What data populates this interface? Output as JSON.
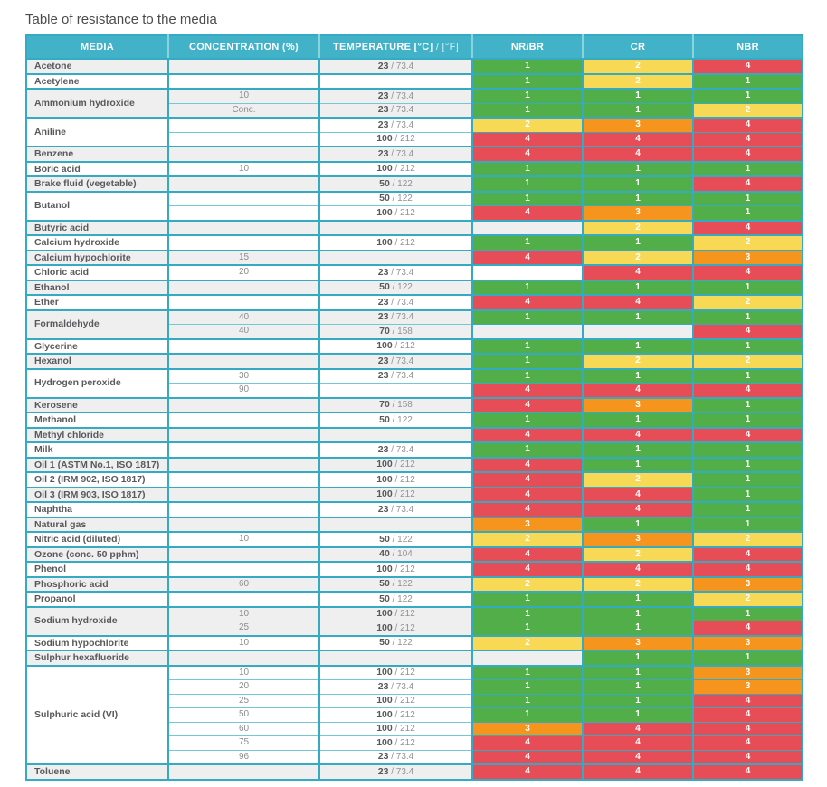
{
  "title": "Table of resistance to the media",
  "colors": {
    "header_bg": "#42b2c8",
    "border": "#35abc3",
    "row_gray": "#efeff0",
    "row_white": "#ffffff",
    "rating_1": "#52ae49",
    "rating_2": "#f8d955",
    "rating_3": "#f6951e",
    "rating_4": "#e64d57"
  },
  "table": {
    "columns": [
      "MEDIA",
      "CONCENTRATION (%)",
      "TEMPERATURE [°C] / [°F]",
      "NR/BR",
      "CR",
      "NBR"
    ],
    "temp_header": {
      "bold": "TEMPERATURE [°C]",
      "light": " / [°F]"
    },
    "rating_legend": {
      "1": "green",
      "2": "yellow",
      "3": "orange",
      "4": "red"
    },
    "groups": [
      {
        "media": "Acetone",
        "rows": [
          {
            "concentration": "",
            "temp_c": "23",
            "temp_f": "73.4",
            "ratings": [
              1,
              2,
              4
            ]
          }
        ]
      },
      {
        "media": "Acetylene",
        "rows": [
          {
            "concentration": "",
            "temp_c": "",
            "temp_f": "",
            "ratings": [
              1,
              2,
              1
            ]
          }
        ]
      },
      {
        "media": "Ammonium hydroxide",
        "rows": [
          {
            "concentration": "10",
            "temp_c": "23",
            "temp_f": "73.4",
            "ratings": [
              1,
              1,
              1
            ]
          },
          {
            "concentration": "Conc.",
            "temp_c": "23",
            "temp_f": "73.4",
            "ratings": [
              1,
              1,
              2
            ]
          }
        ]
      },
      {
        "media": "Aniline",
        "rows": [
          {
            "concentration": "",
            "temp_c": "23",
            "temp_f": "73.4",
            "ratings": [
              2,
              3,
              4
            ]
          },
          {
            "concentration": "",
            "temp_c": "100",
            "temp_f": "212",
            "ratings": [
              4,
              4,
              4
            ]
          }
        ]
      },
      {
        "media": "Benzene",
        "rows": [
          {
            "concentration": "",
            "temp_c": "23",
            "temp_f": "73.4",
            "ratings": [
              4,
              4,
              4
            ]
          }
        ]
      },
      {
        "media": "Boric acid",
        "rows": [
          {
            "concentration": "10",
            "temp_c": "100",
            "temp_f": "212",
            "ratings": [
              1,
              1,
              1
            ]
          }
        ]
      },
      {
        "media": "Brake fluid (vegetable)",
        "rows": [
          {
            "concentration": "",
            "temp_c": "50",
            "temp_f": "122",
            "ratings": [
              1,
              1,
              4
            ]
          }
        ]
      },
      {
        "media": "Butanol",
        "rows": [
          {
            "concentration": "",
            "temp_c": "50",
            "temp_f": "122",
            "ratings": [
              1,
              1,
              1
            ]
          },
          {
            "concentration": "",
            "temp_c": "100",
            "temp_f": "212",
            "ratings": [
              4,
              3,
              1
            ]
          }
        ]
      },
      {
        "media": "Butyric acid",
        "rows": [
          {
            "concentration": "",
            "temp_c": "",
            "temp_f": "",
            "ratings": [
              null,
              2,
              4
            ]
          }
        ]
      },
      {
        "media": "Calcium hydroxide",
        "rows": [
          {
            "concentration": "",
            "temp_c": "100",
            "temp_f": "212",
            "ratings": [
              1,
              1,
              2
            ]
          }
        ]
      },
      {
        "media": "Calcium hypochlorite",
        "rows": [
          {
            "concentration": "15",
            "temp_c": "",
            "temp_f": "",
            "ratings": [
              4,
              2,
              3
            ]
          }
        ]
      },
      {
        "media": "Chloric acid",
        "rows": [
          {
            "concentration": "20",
            "temp_c": "23",
            "temp_f": "73.4",
            "ratings": [
              null,
              4,
              4
            ]
          }
        ]
      },
      {
        "media": "Ethanol",
        "rows": [
          {
            "concentration": "",
            "temp_c": "50",
            "temp_f": "122",
            "ratings": [
              1,
              1,
              1
            ]
          }
        ]
      },
      {
        "media": "Ether",
        "rows": [
          {
            "concentration": "",
            "temp_c": "23",
            "temp_f": "73.4",
            "ratings": [
              4,
              4,
              2
            ]
          }
        ]
      },
      {
        "media": "Formaldehyde",
        "rows": [
          {
            "concentration": "40",
            "temp_c": "23",
            "temp_f": "73.4",
            "ratings": [
              1,
              1,
              1
            ]
          },
          {
            "concentration": "40",
            "temp_c": "70",
            "temp_f": "158",
            "ratings": [
              null,
              null,
              4
            ]
          }
        ]
      },
      {
        "media": "Glycerine",
        "rows": [
          {
            "concentration": "",
            "temp_c": "100",
            "temp_f": "212",
            "ratings": [
              1,
              1,
              1
            ]
          }
        ]
      },
      {
        "media": "Hexanol",
        "rows": [
          {
            "concentration": "",
            "temp_c": "23",
            "temp_f": "73.4",
            "ratings": [
              1,
              2,
              2
            ]
          }
        ]
      },
      {
        "media": "Hydrogen peroxide",
        "rows": [
          {
            "concentration": "30",
            "temp_c": "23",
            "temp_f": "73.4",
            "ratings": [
              1,
              1,
              1
            ]
          },
          {
            "concentration": "90",
            "temp_c": "",
            "temp_f": "",
            "ratings": [
              4,
              4,
              4
            ]
          }
        ]
      },
      {
        "media": "Kerosene",
        "rows": [
          {
            "concentration": "",
            "temp_c": "70",
            "temp_f": "158",
            "ratings": [
              4,
              3,
              1
            ]
          }
        ]
      },
      {
        "media": "Methanol",
        "rows": [
          {
            "concentration": "",
            "temp_c": "50",
            "temp_f": "122",
            "ratings": [
              1,
              1,
              1
            ]
          }
        ]
      },
      {
        "media": "Methyl chloride",
        "rows": [
          {
            "concentration": "",
            "temp_c": "",
            "temp_f": "",
            "ratings": [
              4,
              4,
              4
            ]
          }
        ]
      },
      {
        "media": "Milk",
        "rows": [
          {
            "concentration": "",
            "temp_c": "23",
            "temp_f": "73.4",
            "ratings": [
              1,
              1,
              1
            ]
          }
        ]
      },
      {
        "media": "Oil 1 (ASTM No.1, ISO 1817)",
        "rows": [
          {
            "concentration": "",
            "temp_c": "100",
            "temp_f": "212",
            "ratings": [
              4,
              1,
              1
            ]
          }
        ]
      },
      {
        "media": "Oil 2 (IRM 902, ISO 1817)",
        "rows": [
          {
            "concentration": "",
            "temp_c": "100",
            "temp_f": "212",
            "ratings": [
              4,
              2,
              1
            ]
          }
        ]
      },
      {
        "media": "Oil 3 (IRM 903, ISO 1817)",
        "rows": [
          {
            "concentration": "",
            "temp_c": "100",
            "temp_f": "212",
            "ratings": [
              4,
              4,
              1
            ]
          }
        ]
      },
      {
        "media": "Naphtha",
        "rows": [
          {
            "concentration": "",
            "temp_c": "23",
            "temp_f": "73.4",
            "ratings": [
              4,
              4,
              1
            ]
          }
        ]
      },
      {
        "media": "Natural gas",
        "rows": [
          {
            "concentration": "",
            "temp_c": "",
            "temp_f": "",
            "ratings": [
              3,
              1,
              1
            ]
          }
        ]
      },
      {
        "media": "Nitric acid (diluted)",
        "rows": [
          {
            "concentration": "10",
            "temp_c": "50",
            "temp_f": "122",
            "ratings": [
              2,
              3,
              2
            ]
          }
        ]
      },
      {
        "media": "Ozone (conc. 50 pphm)",
        "rows": [
          {
            "concentration": "",
            "temp_c": "40",
            "temp_f": "104",
            "ratings": [
              4,
              2,
              4
            ]
          }
        ]
      },
      {
        "media": "Phenol",
        "rows": [
          {
            "concentration": "",
            "temp_c": "100",
            "temp_f": "212",
            "ratings": [
              4,
              4,
              4
            ]
          }
        ]
      },
      {
        "media": "Phosphoric acid",
        "rows": [
          {
            "concentration": "60",
            "temp_c": "50",
            "temp_f": "122",
            "ratings": [
              2,
              2,
              3
            ]
          }
        ]
      },
      {
        "media": "Propanol",
        "rows": [
          {
            "concentration": "",
            "temp_c": "50",
            "temp_f": "122",
            "ratings": [
              1,
              1,
              2
            ]
          }
        ]
      },
      {
        "media": "Sodium hydroxide",
        "rows": [
          {
            "concentration": "10",
            "temp_c": "100",
            "temp_f": "212",
            "ratings": [
              1,
              1,
              1
            ]
          },
          {
            "concentration": "25",
            "temp_c": "100",
            "temp_f": "212",
            "ratings": [
              1,
              1,
              4
            ]
          }
        ]
      },
      {
        "media": "Sodium hypochlorite",
        "rows": [
          {
            "concentration": "10",
            "temp_c": "50",
            "temp_f": "122",
            "ratings": [
              2,
              3,
              3
            ]
          }
        ]
      },
      {
        "media": "Sulphur hexafluoride",
        "rows": [
          {
            "concentration": "",
            "temp_c": "",
            "temp_f": "",
            "ratings": [
              null,
              1,
              1
            ]
          }
        ]
      },
      {
        "media": "Sulphuric acid (VI)",
        "rows": [
          {
            "concentration": "10",
            "temp_c": "100",
            "temp_f": "212",
            "ratings": [
              1,
              1,
              3
            ]
          },
          {
            "concentration": "20",
            "temp_c": "23",
            "temp_f": "73.4",
            "ratings": [
              1,
              1,
              3
            ]
          },
          {
            "concentration": "25",
            "temp_c": "100",
            "temp_f": "212",
            "ratings": [
              1,
              1,
              4
            ]
          },
          {
            "concentration": "50",
            "temp_c": "100",
            "temp_f": "212",
            "ratings": [
              1,
              1,
              4
            ]
          },
          {
            "concentration": "60",
            "temp_c": "100",
            "temp_f": "212",
            "ratings": [
              3,
              4,
              4
            ]
          },
          {
            "concentration": "75",
            "temp_c": "100",
            "temp_f": "212",
            "ratings": [
              4,
              4,
              4
            ]
          },
          {
            "concentration": "96",
            "temp_c": "23",
            "temp_f": "73.4",
            "ratings": [
              4,
              4,
              4
            ]
          }
        ]
      },
      {
        "media": "Toluene",
        "rows": [
          {
            "concentration": "",
            "temp_c": "23",
            "temp_f": "73.4",
            "ratings": [
              4,
              4,
              4
            ]
          }
        ]
      }
    ]
  }
}
